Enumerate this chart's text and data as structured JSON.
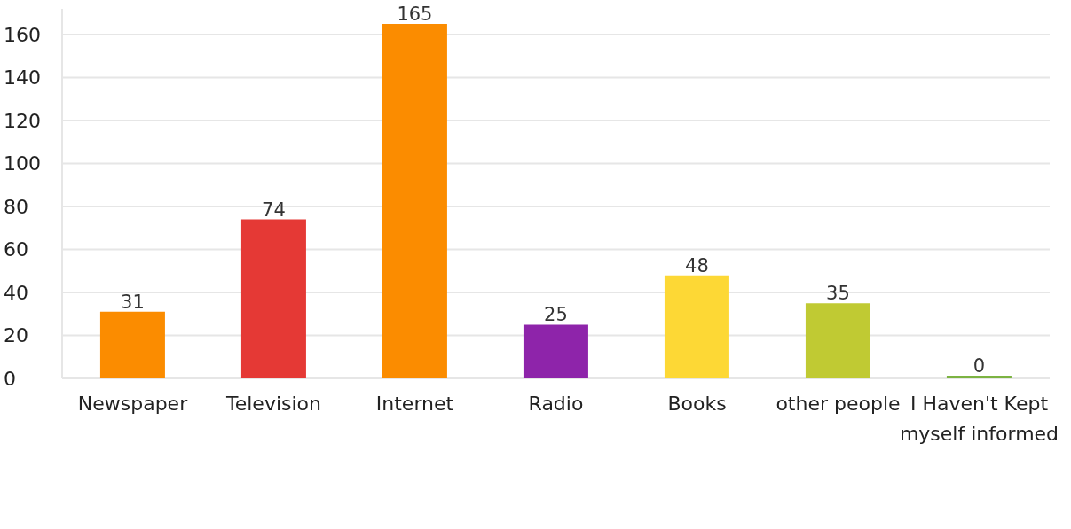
{
  "chart_data": {
    "type": "bar",
    "categories": [
      "Newspaper",
      "Television",
      "Internet",
      "Radio",
      "Books",
      "other people",
      "I Haven't Kept myself informed"
    ],
    "values": [
      31,
      74,
      165,
      25,
      48,
      35,
      0
    ],
    "colors": [
      "#fb8c00",
      "#e53935",
      "#fb8c00",
      "#8e24aa",
      "#fdd835",
      "#c0ca33",
      "#7cb342"
    ],
    "ylim": [
      0,
      172
    ],
    "yticks": [
      0,
      20,
      40,
      60,
      80,
      100,
      120,
      140,
      160
    ],
    "grid": "y",
    "data_labels": true
  }
}
